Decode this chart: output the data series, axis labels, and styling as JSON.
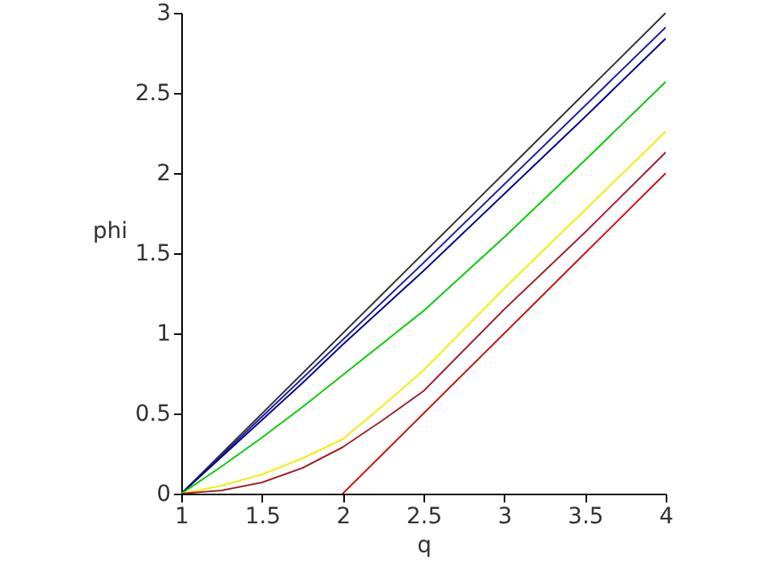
{
  "chart_data": {
    "type": "line",
    "xlabel": "q",
    "ylabel": "phi",
    "x": [
      1,
      1.25,
      1.5,
      1.75,
      2,
      2.25,
      2.5,
      3,
      3.5,
      4
    ],
    "series": [
      {
        "color": "#333333",
        "values": [
          0,
          0.25,
          0.5,
          0.75,
          1,
          1.25,
          1.5,
          2,
          2.5,
          3
        ]
      },
      {
        "color": "#2020a0",
        "values": [
          0,
          0.24,
          0.48,
          0.72,
          0.96,
          1.2,
          1.44,
          1.93,
          2.42,
          2.91
        ]
      },
      {
        "color": "#000090",
        "values": [
          0,
          0.23,
          0.46,
          0.69,
          0.93,
          1.16,
          1.39,
          1.87,
          2.35,
          2.84
        ]
      },
      {
        "color": "#00cc00",
        "values": [
          0,
          0.17,
          0.35,
          0.54,
          0.74,
          0.94,
          1.14,
          1.6,
          2.08,
          2.57
        ]
      },
      {
        "color": "#f0f000",
        "values": [
          0,
          0.05,
          0.12,
          0.22,
          0.34,
          0.55,
          0.77,
          1.28,
          1.77,
          2.26
        ]
      },
      {
        "color": "#a0202a",
        "values": [
          0,
          0.02,
          0.07,
          0.16,
          0.29,
          0.46,
          0.64,
          1.15,
          1.63,
          2.13
        ]
      },
      {
        "color": "#cc1010",
        "values": [
          null,
          null,
          null,
          null,
          0,
          0.25,
          0.5,
          1,
          1.5,
          2
        ]
      }
    ],
    "xlim": [
      1,
      4
    ],
    "ylim": [
      0,
      3
    ],
    "xticks": [
      1,
      1.5,
      2,
      2.5,
      3,
      3.5,
      4
    ],
    "yticks": [
      0,
      0.5,
      1,
      1.5,
      2,
      2.5,
      3
    ],
    "grid": false
  }
}
